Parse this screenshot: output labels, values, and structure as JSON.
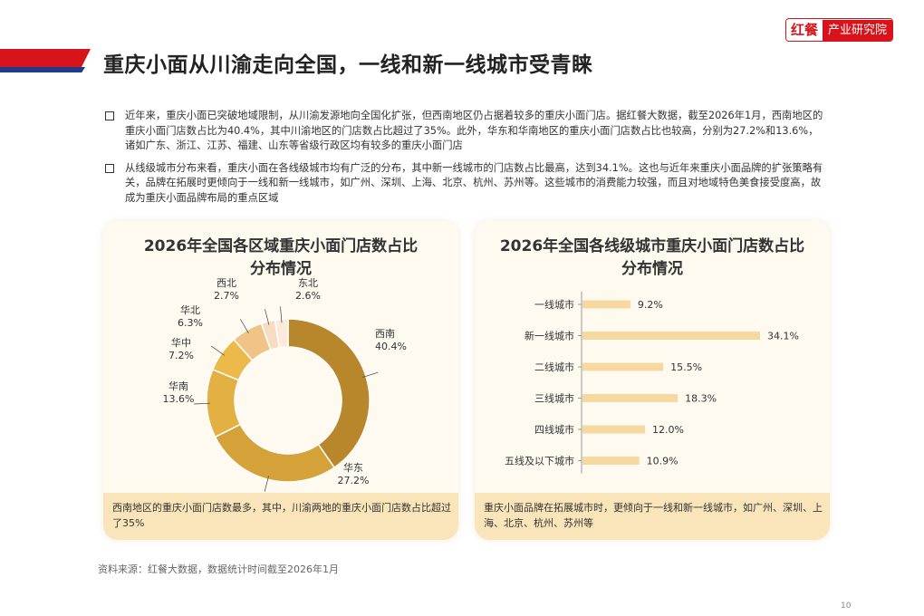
{
  "page": {
    "title": "重庆小面从川渝走向全国，一线和新一线城市受青睐",
    "logo_mark": "红餐",
    "logo_name": "产业研究院",
    "bullets": [
      "近年来，重庆小面已突破地域限制，从川渝发源地向全国化扩张，但西南地区仍占据着较多的重庆小面门店。据红餐大数据，截至2026年1月，西南地区的重庆小面门店数占比为40.4%，其中川渝地区的门店数占比超过了35%。此外，华东和华南地区的重庆小面门店数占比也较高，分别为27.2%和13.6%，诸如广东、浙江、江苏、福建、山东等省级行政区均有较多的重庆小面门店",
      "从线级城市分布来看，重庆小面在各线级城市均有广泛的分布，其中新一线城市的门店数占比最高，达到34.1%。这也与近年来重庆小面品牌的扩张策略有关，品牌在拓展时更倾向于一线和新一线城市，如广州、深圳、上海、北京、杭州、苏州等。这些城市的消费能力较强，而且对地域特色美食接受度高，故成为重庆小面品牌布局的重点区域"
    ],
    "left_panel": {
      "title_line1": "2026年全国各区域重庆小面门店数占比",
      "title_line2": "分布情况",
      "note": "西南地区的重庆小面门店数最多，其中，川渝两地的重庆小面门店数占比超过了35%"
    },
    "right_panel": {
      "title_line1": "2026年全国各线级城市重庆小面门店数占比",
      "title_line2": "分布情况",
      "note": "重庆小面品牌在拓展城市时，更倾向于一线和新一线城市，如广州、深圳、上海、北京、杭州、苏州等"
    },
    "source": "资料来源：红餐大数据，数据统计时间截至2026年1月",
    "page_number": "10"
  },
  "chart_data": [
    {
      "type": "pie",
      "donut": true,
      "title": "2026年全国各区域重庆小面门店数占比分布情况",
      "categories": [
        "西南",
        "华东",
        "华南",
        "华中",
        "华北",
        "西北",
        "东北"
      ],
      "values": [
        40.4,
        27.2,
        13.6,
        7.2,
        6.3,
        2.7,
        2.6
      ],
      "labels": [
        "40.4%",
        "27.2%",
        "13.6%",
        "7.2%",
        "6.3%",
        "2.7%",
        "2.6%"
      ],
      "colors": [
        "#b8862b",
        "#d5a23a",
        "#e2b043",
        "#ebba4a",
        "#f0c487",
        "#f6dcc0",
        "#fbeadc"
      ],
      "start": "top",
      "direction": "clockwise"
    },
    {
      "type": "bar",
      "orientation": "horizontal",
      "title": "2026年全国各线级城市重庆小面门店数占比分布情况",
      "categories": [
        "一线城市",
        "新一线城市",
        "二线城市",
        "三线城市",
        "四线城市",
        "五线及以下城市"
      ],
      "values": [
        9.2,
        34.1,
        15.5,
        18.3,
        12.0,
        10.9
      ],
      "labels": [
        "9.2%",
        "34.1%",
        "15.5%",
        "18.3%",
        "12.0%",
        "10.9%"
      ],
      "unit": "%",
      "color": "#f6d9a0",
      "xlim": [
        0,
        34.1
      ]
    }
  ]
}
